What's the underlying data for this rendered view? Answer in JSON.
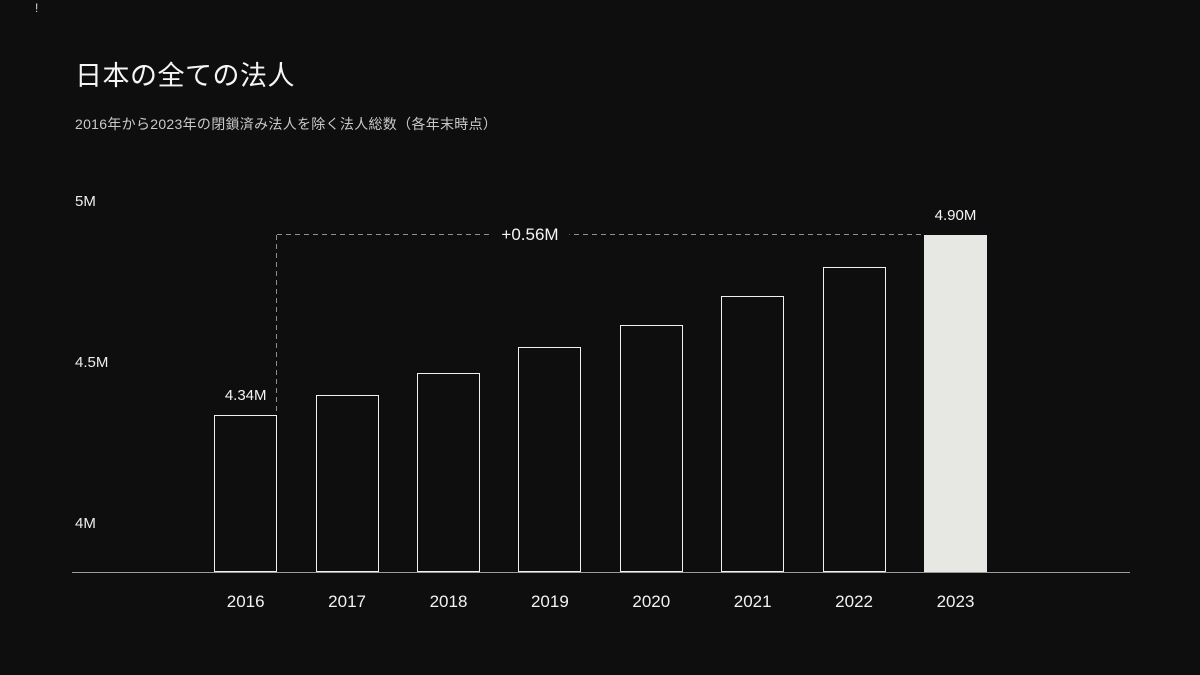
{
  "page": {
    "background": "#0e0e0e",
    "corner_mark": "!"
  },
  "header": {
    "title": "日本の全ての法人",
    "subtitle": "2016年から2023年の閉鎖済み法人を除く法人総数（各年末時点）"
  },
  "chart_data": {
    "type": "bar",
    "title": "日本の全ての法人",
    "subtitle": "2016年から2023年の閉鎖済み法人を除く法人総数（各年末時点）",
    "categories": [
      "2016",
      "2017",
      "2018",
      "2019",
      "2020",
      "2021",
      "2022",
      "2023"
    ],
    "values": [
      4.34,
      4.4,
      4.47,
      4.55,
      4.62,
      4.71,
      4.8,
      4.9
    ],
    "unit": "M",
    "ylim": [
      3.85,
      5.07
    ],
    "yticks": [
      {
        "value": 4,
        "label": "4M"
      },
      {
        "value": 4.5,
        "label": "4.5M"
      },
      {
        "value": 5,
        "label": "5M"
      }
    ],
    "grid": false,
    "legend": false,
    "highlight_index": 7,
    "value_labels": [
      {
        "index": 0,
        "text": "4.34M"
      },
      {
        "index": 7,
        "text": "4.90M"
      }
    ],
    "annotation": {
      "delta_label": "+0.56M",
      "from_index": 0,
      "to_index": 7
    },
    "colors": {
      "bar_outline": "#f0f0f0",
      "bar_highlight_fill": "#e7e7e4",
      "axis_line": "#9b9b9b",
      "dash_line": "#8f8f8f",
      "text": "#ededed"
    }
  }
}
